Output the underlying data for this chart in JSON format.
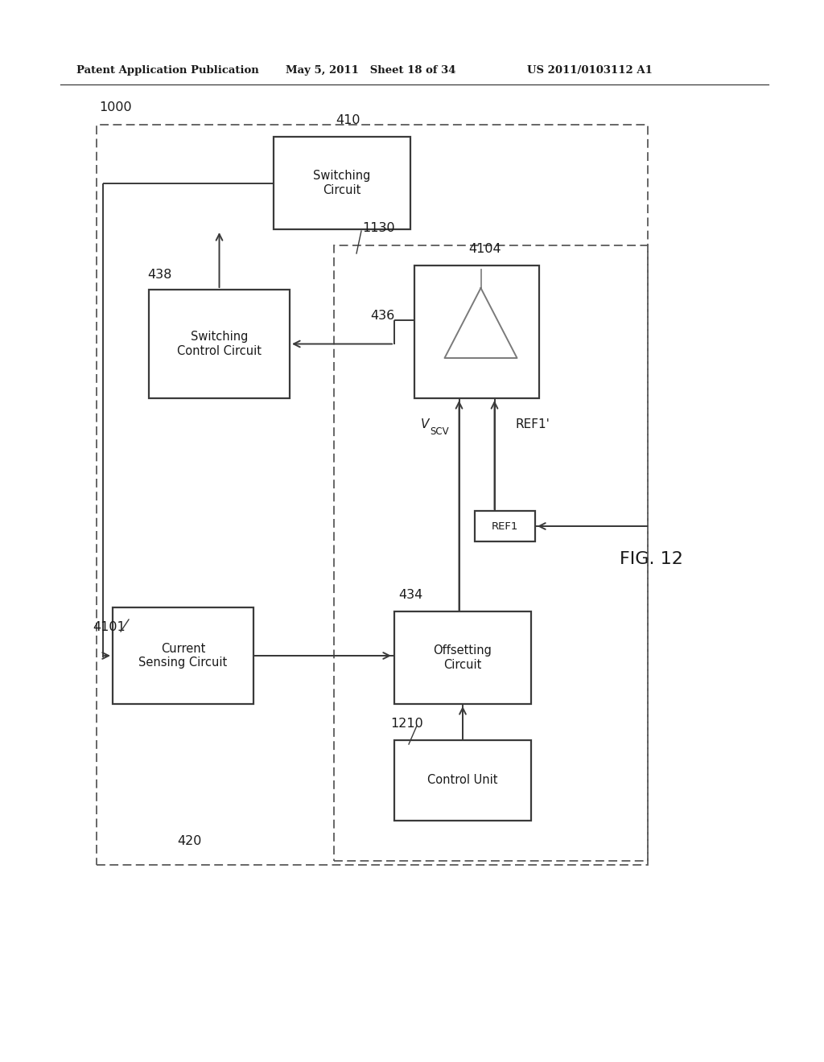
{
  "header_left": "Patent Application Publication",
  "header_mid": "May 5, 2011   Sheet 18 of 34",
  "header_right": "US 2011/0103112 A1",
  "fig_label": "FIG. 12",
  "label_1000": "1000",
  "label_4101": "4101",
  "label_410": "410",
  "label_438": "438",
  "label_436": "436",
  "label_434": "434",
  "label_420": "420",
  "label_1130": "1130",
  "label_4104": "4104",
  "label_1210": "1210",
  "label_vscv_v": "V",
  "label_vscv_sub": "SCV",
  "label_ref1prime": "REF1'",
  "label_ref1": "REF1",
  "box_switching_circuit": "Switching\nCircuit",
  "box_switching_control": "Switching\nControl Circuit",
  "box_current_sensing": "Current\nSensing Circuit",
  "box_offsetting": "Offsetting\nCircuit",
  "box_control_unit": "Control Unit",
  "line_color": "#3a3a3a",
  "dashed_color": "#5a5a5a",
  "bg_color": "#ffffff",
  "text_color": "#1a1a1a"
}
